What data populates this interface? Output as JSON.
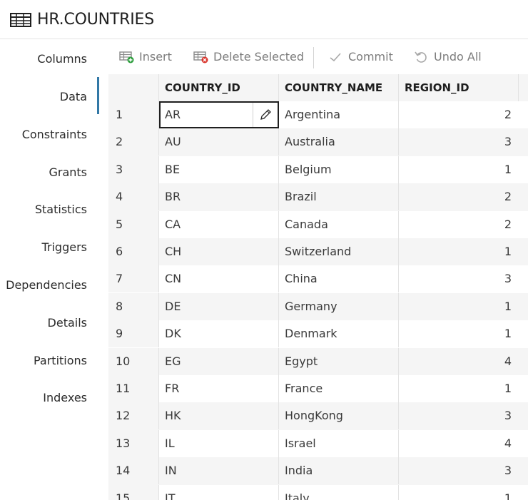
{
  "header": {
    "title": "HR.COUNTRIES",
    "icon": "table-icon"
  },
  "sidebar": {
    "items": [
      {
        "label": "Columns",
        "active": false
      },
      {
        "label": "Data",
        "active": true
      },
      {
        "label": "Constraints",
        "active": false
      },
      {
        "label": "Grants",
        "active": false
      },
      {
        "label": "Statistics",
        "active": false
      },
      {
        "label": "Triggers",
        "active": false
      },
      {
        "label": "Dependencies",
        "active": false
      },
      {
        "label": "Details",
        "active": false
      },
      {
        "label": "Partitions",
        "active": false
      },
      {
        "label": "Indexes",
        "active": false
      }
    ]
  },
  "toolbar": {
    "insert_label": "Insert",
    "delete_label": "Delete Selected",
    "commit_label": "Commit",
    "undo_label": "Undo All"
  },
  "grid": {
    "columns": [
      "COUNTRY_ID",
      "COUNTRY_NAME",
      "REGION_ID"
    ],
    "rows": [
      {
        "n": "1",
        "id": "AR",
        "name": "Argentina",
        "region": "2"
      },
      {
        "n": "2",
        "id": "AU",
        "name": "Australia",
        "region": "3"
      },
      {
        "n": "3",
        "id": "BE",
        "name": "Belgium",
        "region": "1"
      },
      {
        "n": "4",
        "id": "BR",
        "name": "Brazil",
        "region": "2"
      },
      {
        "n": "5",
        "id": "CA",
        "name": "Canada",
        "region": "2"
      },
      {
        "n": "6",
        "id": "CH",
        "name": "Switzerland",
        "region": "1"
      },
      {
        "n": "7",
        "id": "CN",
        "name": "China",
        "region": "3"
      },
      {
        "n": "8",
        "id": "DE",
        "name": "Germany",
        "region": "1"
      },
      {
        "n": "9",
        "id": "DK",
        "name": "Denmark",
        "region": "1"
      },
      {
        "n": "10",
        "id": "EG",
        "name": "Egypt",
        "region": "4"
      },
      {
        "n": "11",
        "id": "FR",
        "name": "France",
        "region": "1"
      },
      {
        "n": "12",
        "id": "HK",
        "name": "HongKong",
        "region": "3"
      },
      {
        "n": "13",
        "id": "IL",
        "name": "Israel",
        "region": "4"
      },
      {
        "n": "14",
        "id": "IN",
        "name": "India",
        "region": "3"
      },
      {
        "n": "15",
        "id": "IT",
        "name": "Italy",
        "region": "1"
      }
    ]
  },
  "colors": {
    "active_bar": "#3278a6",
    "insert_badge": "#2e9e3e",
    "delete_badge": "#d9342b"
  }
}
